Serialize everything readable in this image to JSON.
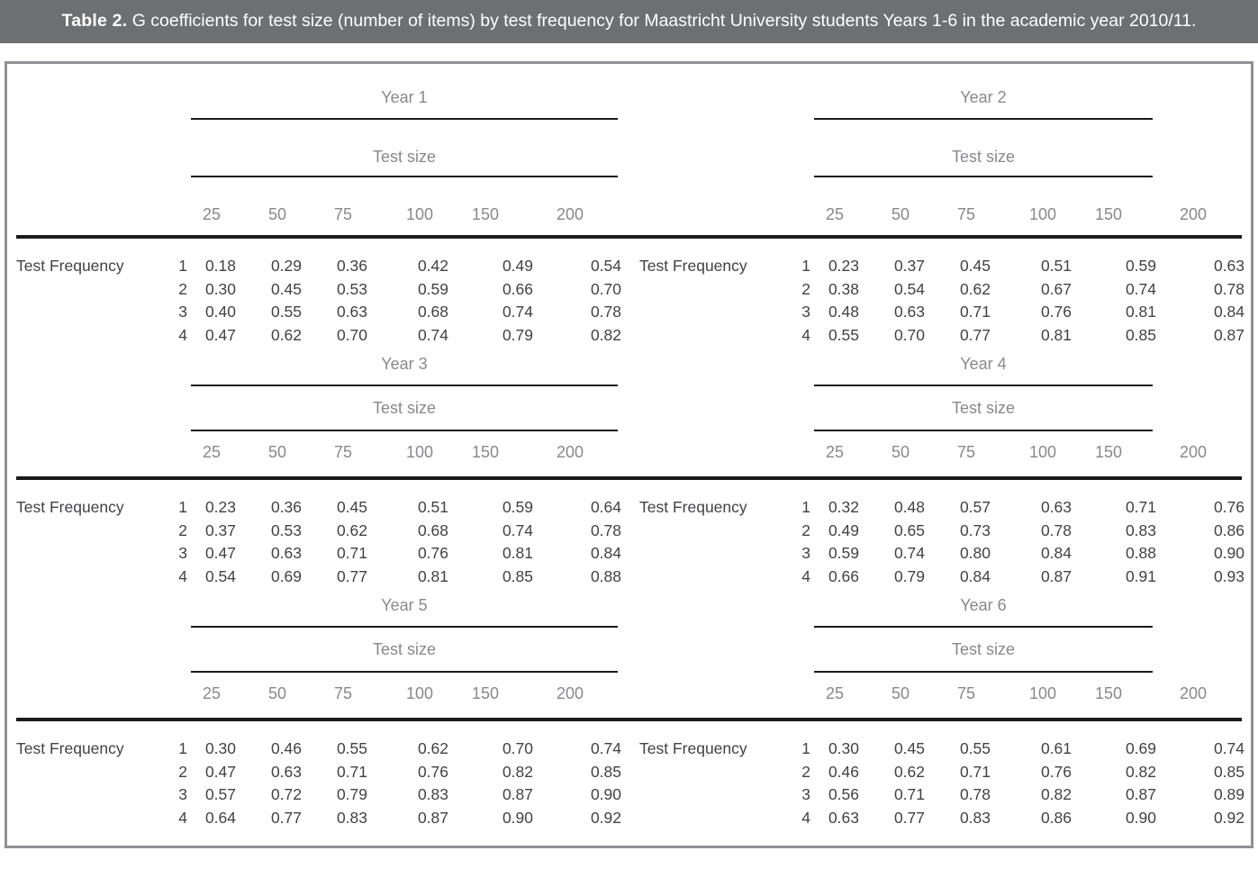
{
  "title": {
    "label": "Table 2.",
    "text": "G coefficients for test size (number of items) by test frequency for Maastricht University students Years 1-6 in the academic year 2010/11."
  },
  "colors": {
    "caption_bar_bg": "#6e6f71",
    "caption_text": "#ffffff",
    "frame_border": "#909195",
    "header_text": "#88898c",
    "body_text": "#414244",
    "rule": "#1b1b1b"
  },
  "table": {
    "row_label": "Test Frequency",
    "col_group_label": "Test size",
    "col_headers": [
      "25",
      "50",
      "75",
      "100",
      "150",
      "200"
    ],
    "frequencies": [
      "1",
      "2",
      "3",
      "4"
    ],
    "years": [
      {
        "label": "Year 1",
        "rows": [
          [
            "0.18",
            "0.29",
            "0.36",
            "0.42",
            "0.49",
            "0.54"
          ],
          [
            "0.30",
            "0.45",
            "0.53",
            "0.59",
            "0.66",
            "0.70"
          ],
          [
            "0.40",
            "0.55",
            "0.63",
            "0.68",
            "0.74",
            "0.78"
          ],
          [
            "0.47",
            "0.62",
            "0.70",
            "0.74",
            "0.79",
            "0.82"
          ]
        ]
      },
      {
        "label": "Year 2",
        "rows": [
          [
            "0.23",
            "0.37",
            "0.45",
            "0.51",
            "0.59",
            "0.63"
          ],
          [
            "0.38",
            "0.54",
            "0.62",
            "0.67",
            "0.74",
            "0.78"
          ],
          [
            "0.48",
            "0.63",
            "0.71",
            "0.76",
            "0.81",
            "0.84"
          ],
          [
            "0.55",
            "0.70",
            "0.77",
            "0.81",
            "0.85",
            "0.87"
          ]
        ]
      },
      {
        "label": "Year 3",
        "rows": [
          [
            "0.23",
            "0.36",
            "0.45",
            "0.51",
            "0.59",
            "0.64"
          ],
          [
            "0.37",
            "0.53",
            "0.62",
            "0.68",
            "0.74",
            "0.78"
          ],
          [
            "0.47",
            "0.63",
            "0.71",
            "0.76",
            "0.81",
            "0.84"
          ],
          [
            "0.54",
            "0.69",
            "0.77",
            "0.81",
            "0.85",
            "0.88"
          ]
        ]
      },
      {
        "label": "Year 4",
        "rows": [
          [
            "0.32",
            "0.48",
            "0.57",
            "0.63",
            "0.71",
            "0.76"
          ],
          [
            "0.49",
            "0.65",
            "0.73",
            "0.78",
            "0.83",
            "0.86"
          ],
          [
            "0.59",
            "0.74",
            "0.80",
            "0.84",
            "0.88",
            "0.90"
          ],
          [
            "0.66",
            "0.79",
            "0.84",
            "0.87",
            "0.91",
            "0.93"
          ]
        ]
      },
      {
        "label": "Year 5",
        "rows": [
          [
            "0.30",
            "0.46",
            "0.55",
            "0.62",
            "0.70",
            "0.74"
          ],
          [
            "0.47",
            "0.63",
            "0.71",
            "0.76",
            "0.82",
            "0.85"
          ],
          [
            "0.57",
            "0.72",
            "0.79",
            "0.83",
            "0.87",
            "0.90"
          ],
          [
            "0.64",
            "0.77",
            "0.83",
            "0.87",
            "0.90",
            "0.92"
          ]
        ]
      },
      {
        "label": "Year 6",
        "rows": [
          [
            "0.30",
            "0.45",
            "0.55",
            "0.61",
            "0.69",
            "0.74"
          ],
          [
            "0.46",
            "0.62",
            "0.71",
            "0.76",
            "0.82",
            "0.85"
          ],
          [
            "0.56",
            "0.71",
            "0.78",
            "0.82",
            "0.87",
            "0.89"
          ],
          [
            "0.63",
            "0.77",
            "0.83",
            "0.86",
            "0.90",
            "0.92"
          ]
        ]
      }
    ]
  }
}
